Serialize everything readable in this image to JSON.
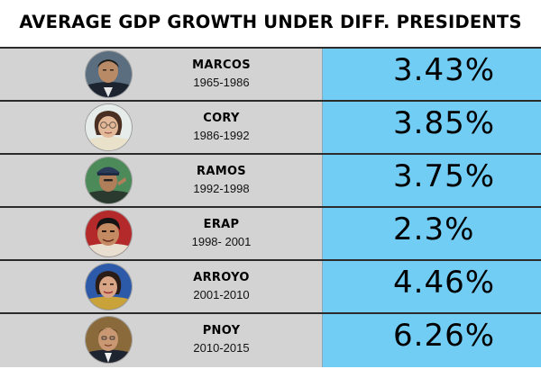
{
  "title": "AVERAGE GDP GROWTH UNDER DIFF. PRESIDENTS",
  "colors": {
    "left_bg": "#d3d3d3",
    "right_bg": "#72cdf4",
    "border": "#2b2b2b"
  },
  "rows": [
    {
      "name": "MARCOS",
      "years": "1965-1986",
      "growth": "3.43%",
      "portrait_icon": "portrait-marcos"
    },
    {
      "name": "CORY",
      "years": "1986-1992",
      "growth": "3.85%",
      "portrait_icon": "portrait-cory"
    },
    {
      "name": "RAMOS",
      "years": "1992-1998",
      "growth": "3.75%",
      "portrait_icon": "portrait-ramos"
    },
    {
      "name": "ERAP",
      "years": "1998- 2001",
      "growth": "2.3%",
      "portrait_icon": "portrait-erap"
    },
    {
      "name": "ARROYO",
      "years": "2001-2010",
      "growth": "4.46%",
      "portrait_icon": "portrait-arroyo"
    },
    {
      "name": "PNOY",
      "years": "2010-2015",
      "growth": "6.26%",
      "portrait_icon": "portrait-pnoy"
    }
  ]
}
